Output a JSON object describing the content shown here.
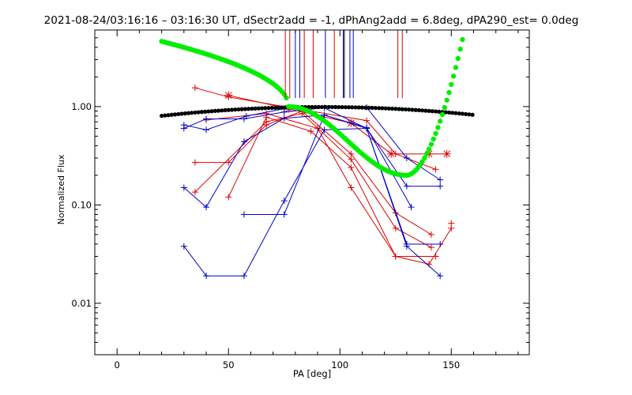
{
  "chart_data": {
    "type": "line",
    "title": "2021-08-24/03:16:16 – 03:16:30 UT, dSectr2add = -1, dPhAng2add = 6.8deg, dPA290_est=  0.0deg",
    "xlabel": "PA [deg]",
    "ylabel": "Normalized Flux",
    "xlim": [
      -10,
      185
    ],
    "ylim": [
      0.003,
      6.0
    ],
    "yscale": "log",
    "xticks": [
      0,
      50,
      100,
      150
    ],
    "xtick_labels": [
      "0",
      "50",
      "100",
      "150"
    ],
    "yticks": [
      0.01,
      0.1,
      1.0
    ],
    "ytick_labels": [
      "0.01",
      "0.10",
      "1.00"
    ],
    "grid": false,
    "legend": null,
    "colors": {
      "red": "#dd0000",
      "blue": "#0000cc",
      "green": "#00ee00",
      "black": "#000000"
    },
    "vertical_markers": [
      {
        "color": "red",
        "x": [
          75.5,
          77.5,
          84.0,
          88.0,
          97.5,
          126.0,
          128.0
        ]
      },
      {
        "color": "blue",
        "x": [
          80.0,
          82.0,
          93.5,
          101.5,
          104.5,
          106.0
        ]
      },
      {
        "color": "black",
        "x": [
          102.0
        ]
      }
    ],
    "series": [
      {
        "color": "red",
        "marker": "plus",
        "x": [
          35,
          50,
          112,
          125,
          143
        ],
        "y": [
          1.55,
          1.25,
          0.72,
          0.33,
          0.23
        ]
      },
      {
        "color": "red",
        "marker": "star",
        "x": [
          50,
          77,
          105,
          123,
          140,
          148
        ],
        "y": [
          1.3,
          0.95,
          0.68,
          0.33,
          0.33,
          0.33
        ]
      },
      {
        "color": "red",
        "marker": "plus",
        "x": [
          35,
          50,
          67,
          83,
          105,
          125,
          141
        ],
        "y": [
          0.27,
          0.27,
          0.65,
          0.9,
          0.33,
          0.083,
          0.05
        ]
      },
      {
        "color": "red",
        "marker": "plus",
        "x": [
          35,
          67,
          83,
          105,
          125,
          141
        ],
        "y": [
          0.135,
          0.7,
          0.85,
          0.29,
          0.058,
          0.037
        ]
      },
      {
        "color": "red",
        "marker": "plus",
        "x": [
          50,
          67,
          87,
          105,
          125,
          143
        ],
        "y": [
          0.12,
          0.78,
          0.56,
          0.24,
          0.03,
          0.03
        ]
      },
      {
        "color": "red",
        "marker": "plus",
        "x": [
          40,
          67,
          90,
          105,
          125,
          140,
          150
        ],
        "y": [
          0.73,
          0.85,
          0.6,
          0.15,
          0.03,
          0.025,
          0.058
        ]
      },
      {
        "color": "red",
        "marker": "plus",
        "x": [
          150
        ],
        "y": [
          0.065
        ]
      },
      {
        "color": "blue",
        "marker": "plus",
        "x": [
          30,
          40,
          58,
          75,
          93,
          112,
          130,
          145
        ],
        "y": [
          0.65,
          0.58,
          0.8,
          0.95,
          0.97,
          0.98,
          0.3,
          0.18
        ]
      },
      {
        "color": "blue",
        "marker": "plus",
        "x": [
          30,
          40,
          57,
          75,
          93,
          112,
          130,
          145
        ],
        "y": [
          0.6,
          0.75,
          0.75,
          0.88,
          0.97,
          0.6,
          0.155,
          0.155
        ]
      },
      {
        "color": "blue",
        "marker": "plus",
        "x": [
          30,
          40,
          57,
          75,
          93,
          112,
          132
        ],
        "y": [
          0.15,
          0.095,
          0.44,
          0.76,
          0.82,
          0.61,
          0.095
        ]
      },
      {
        "color": "blue",
        "marker": "plus",
        "x": [
          57,
          75,
          93,
          112,
          130,
          145
        ],
        "y": [
          0.08,
          0.08,
          0.82,
          0.6,
          0.04,
          0.04
        ]
      },
      {
        "color": "blue",
        "marker": "plus",
        "x": [
          30,
          40,
          57,
          75,
          93,
          112,
          130,
          145
        ],
        "y": [
          0.038,
          0.019,
          0.019,
          0.11,
          0.58,
          0.6,
          0.038,
          0.019
        ]
      },
      {
        "color": "black",
        "style": "thick-dotted",
        "name": "",
        "fn": "black_curve"
      },
      {
        "color": "green",
        "style": "thick-dotted",
        "name": "",
        "fn": "green_curve"
      }
    ]
  }
}
